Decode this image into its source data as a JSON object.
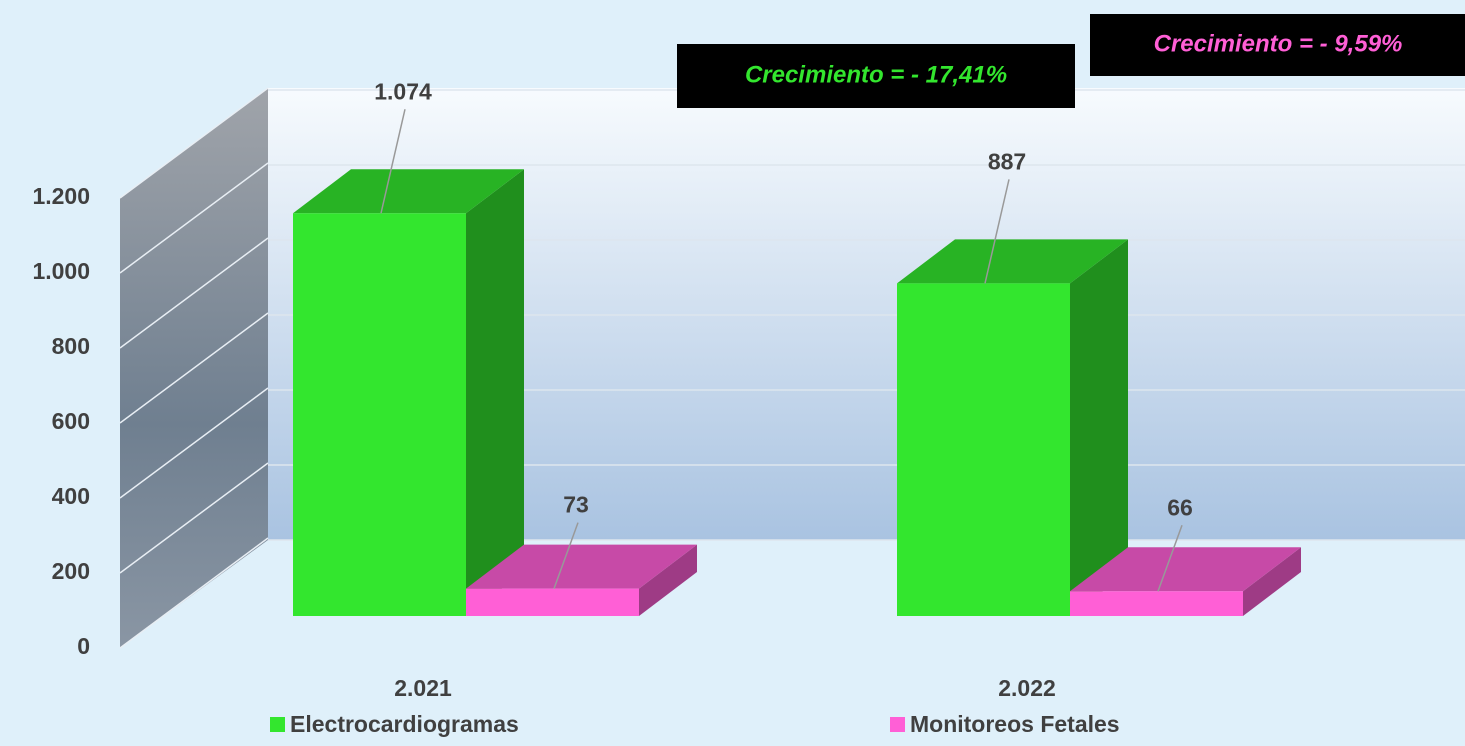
{
  "chart_data": {
    "type": "bar3d",
    "categories": [
      "2.021",
      "2.022"
    ],
    "series": [
      {
        "name": "Electrocardiogramas",
        "color": "#33e62e",
        "values": [
          1074,
          887
        ],
        "value_labels": [
          "1.074",
          "887"
        ]
      },
      {
        "name": "Monitoreos Fetales",
        "color": "#ff5fd6",
        "values": [
          73,
          66
        ]
      }
    ],
    "ylim": [
      0,
      1200
    ],
    "yticks": [
      0,
      200,
      400,
      600,
      800,
      {
        "value": 1000,
        "label": "1.000"
      },
      {
        "value": 1200,
        "label": "1.200"
      }
    ],
    "grid": true,
    "annotations": [
      "Crecimiento = - 17,41%",
      "Crecimiento = - 9,59%"
    ]
  }
}
